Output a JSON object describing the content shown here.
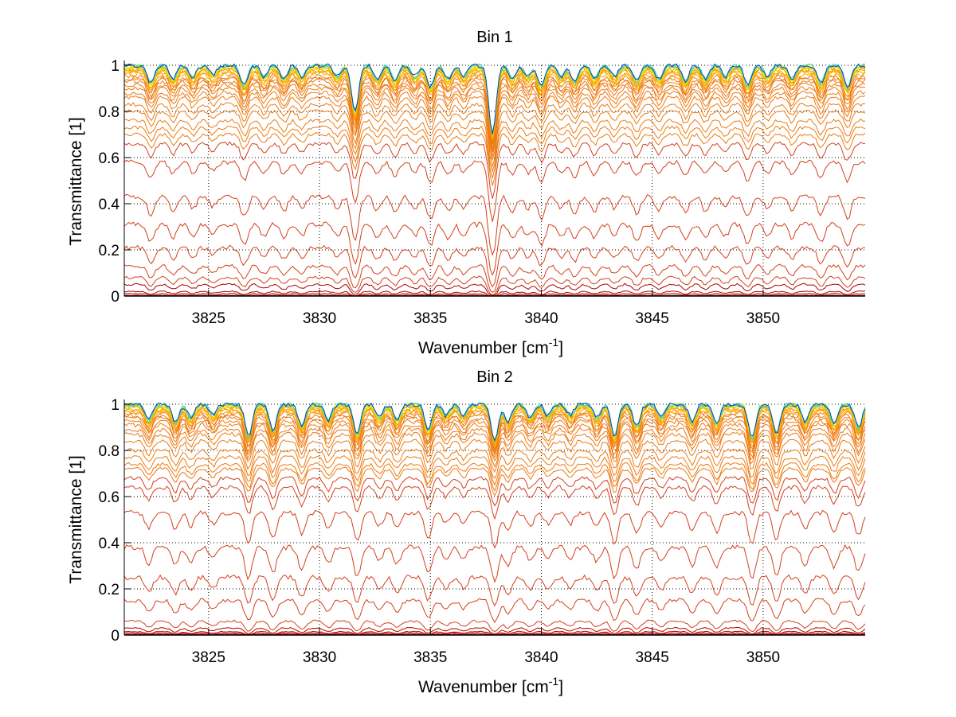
{
  "chart_data": [
    {
      "type": "line",
      "title": "Bin 1",
      "xlabel": "Wavenumber [cm",
      "xlabel_sup": "-1",
      "xlabel_end": "]",
      "ylabel": "Transmittance [1]",
      "xlim": [
        3821.2,
        3854.6
      ],
      "ylim": [
        0,
        1
      ],
      "xticks": [
        3825,
        3830,
        3835,
        3840,
        3845,
        3850
      ],
      "xtick_labels": [
        "3825",
        "3830",
        "3835",
        "3840",
        "3845",
        "3850"
      ],
      "yticks": [
        0,
        0.2,
        0.4,
        0.6,
        0.8,
        1
      ],
      "ytick_labels": [
        "0",
        "0.2",
        "0.4",
        "0.6",
        "0.8",
        "1"
      ],
      "grid": true,
      "colormap": "jet (blue→yellow→orange→dark red by increasing optical depth)",
      "series_baselines": [
        0.0,
        0.003,
        0.01,
        0.02,
        0.05,
        0.08,
        0.13,
        0.21,
        0.31,
        0.43,
        0.58,
        0.66,
        0.7,
        0.73,
        0.76,
        0.8,
        0.83,
        0.86,
        0.88,
        0.9,
        0.915,
        0.93,
        0.94,
        0.95,
        0.96,
        0.967,
        0.973,
        0.978,
        0.983,
        0.987,
        0.99,
        0.993,
        0.995,
        0.997,
        0.998,
        0.999
      ],
      "absorption_lines": [
        {
          "x": 3822.4,
          "depth": 0.08
        },
        {
          "x": 3823.4,
          "depth": 0.06
        },
        {
          "x": 3824.3,
          "depth": 0.05
        },
        {
          "x": 3825.2,
          "depth": 0.04
        },
        {
          "x": 3826.6,
          "depth": 0.09
        },
        {
          "x": 3827.5,
          "depth": 0.05
        },
        {
          "x": 3828.4,
          "depth": 0.06
        },
        {
          "x": 3829.2,
          "depth": 0.05
        },
        {
          "x": 3830.8,
          "depth": 0.05
        },
        {
          "x": 3831.6,
          "depth": 0.22
        },
        {
          "x": 3832.6,
          "depth": 0.06
        },
        {
          "x": 3833.4,
          "depth": 0.07
        },
        {
          "x": 3834.3,
          "depth": 0.05
        },
        {
          "x": 3835.0,
          "depth": 0.1
        },
        {
          "x": 3835.8,
          "depth": 0.06
        },
        {
          "x": 3836.5,
          "depth": 0.05
        },
        {
          "x": 3837.8,
          "depth": 0.35
        },
        {
          "x": 3838.7,
          "depth": 0.06
        },
        {
          "x": 3839.4,
          "depth": 0.05
        },
        {
          "x": 3840.0,
          "depth": 0.1
        },
        {
          "x": 3840.9,
          "depth": 0.05
        },
        {
          "x": 3841.5,
          "depth": 0.07
        },
        {
          "x": 3842.4,
          "depth": 0.06
        },
        {
          "x": 3843.3,
          "depth": 0.05
        },
        {
          "x": 3844.3,
          "depth": 0.07
        },
        {
          "x": 3845.3,
          "depth": 0.06
        },
        {
          "x": 3846.5,
          "depth": 0.07
        },
        {
          "x": 3847.4,
          "depth": 0.06
        },
        {
          "x": 3848.3,
          "depth": 0.05
        },
        {
          "x": 3849.3,
          "depth": 0.09
        },
        {
          "x": 3850.2,
          "depth": 0.05
        },
        {
          "x": 3851.3,
          "depth": 0.06
        },
        {
          "x": 3852.6,
          "depth": 0.08
        },
        {
          "x": 3853.8,
          "depth": 0.1
        }
      ]
    },
    {
      "type": "line",
      "title": "Bin 2",
      "xlabel": "Wavenumber [cm",
      "xlabel_sup": "-1",
      "xlabel_end": "]",
      "ylabel": "Transmittance [1]",
      "xlim": [
        3821.2,
        3854.6
      ],
      "ylim": [
        0,
        1
      ],
      "xticks": [
        3825,
        3830,
        3835,
        3840,
        3845,
        3850
      ],
      "xtick_labels": [
        "3825",
        "3830",
        "3835",
        "3840",
        "3845",
        "3850"
      ],
      "yticks": [
        0,
        0.2,
        0.4,
        0.6,
        0.8,
        1
      ],
      "ytick_labels": [
        "0",
        "0.2",
        "0.4",
        "0.6",
        "0.8",
        "1"
      ],
      "grid": true,
      "colormap": "jet (blue→yellow→orange→dark red by increasing optical depth)",
      "series_baselines": [
        0.0,
        0.003,
        0.008,
        0.015,
        0.03,
        0.06,
        0.15,
        0.25,
        0.38,
        0.53,
        0.64,
        0.68,
        0.72,
        0.74,
        0.77,
        0.8,
        0.84,
        0.87,
        0.89,
        0.91,
        0.925,
        0.94,
        0.95,
        0.96,
        0.967,
        0.973,
        0.978,
        0.983,
        0.987,
        0.99,
        0.993,
        0.995,
        0.997,
        0.998,
        0.999,
        1.0
      ],
      "absorption_lines": [
        {
          "x": 3822.3,
          "depth": 0.07
        },
        {
          "x": 3823.5,
          "depth": 0.08
        },
        {
          "x": 3824.2,
          "depth": 0.06
        },
        {
          "x": 3825.2,
          "depth": 0.05
        },
        {
          "x": 3826.8,
          "depth": 0.15
        },
        {
          "x": 3827.9,
          "depth": 0.12
        },
        {
          "x": 3829.2,
          "depth": 0.1
        },
        {
          "x": 3830.4,
          "depth": 0.07
        },
        {
          "x": 3831.7,
          "depth": 0.14
        },
        {
          "x": 3832.7,
          "depth": 0.06
        },
        {
          "x": 3833.5,
          "depth": 0.07
        },
        {
          "x": 3834.9,
          "depth": 0.12
        },
        {
          "x": 3835.7,
          "depth": 0.05
        },
        {
          "x": 3836.5,
          "depth": 0.05
        },
        {
          "x": 3837.9,
          "depth": 0.17
        },
        {
          "x": 3838.5,
          "depth": 0.08
        },
        {
          "x": 3839.5,
          "depth": 0.06
        },
        {
          "x": 3840.3,
          "depth": 0.05
        },
        {
          "x": 3841.3,
          "depth": 0.05
        },
        {
          "x": 3842.5,
          "depth": 0.06
        },
        {
          "x": 3843.3,
          "depth": 0.15
        },
        {
          "x": 3844.3,
          "depth": 0.1
        },
        {
          "x": 3845.4,
          "depth": 0.06
        },
        {
          "x": 3846.8,
          "depth": 0.08
        },
        {
          "x": 3847.9,
          "depth": 0.09
        },
        {
          "x": 3849.5,
          "depth": 0.16
        },
        {
          "x": 3850.6,
          "depth": 0.13
        },
        {
          "x": 3851.9,
          "depth": 0.08
        },
        {
          "x": 3853.2,
          "depth": 0.09
        },
        {
          "x": 3854.3,
          "depth": 0.11
        }
      ]
    }
  ]
}
